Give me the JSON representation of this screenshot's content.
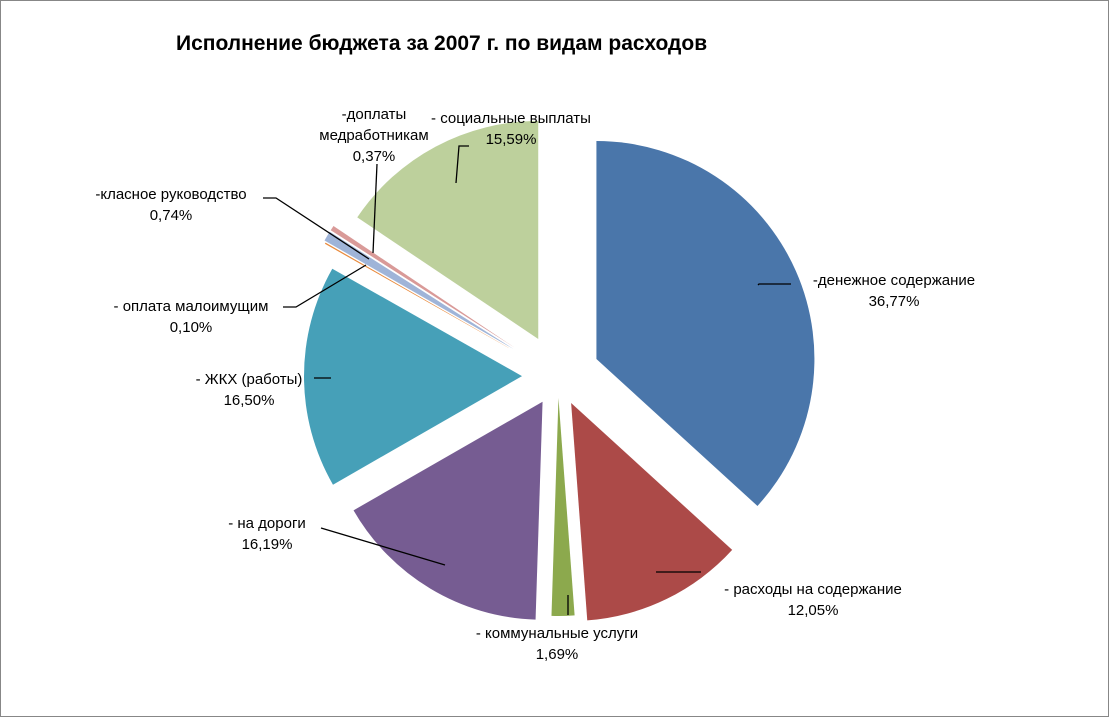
{
  "chart_data": {
    "type": "pie",
    "title": "Исполнение бюджета за 2007 г. по видам расходов",
    "exploded": true,
    "slices": [
      {
        "name": "-денежное содержание",
        "value_label": "36,77%",
        "value": 36.77,
        "color": "#4A76AA"
      },
      {
        "name": "- расходы на содержание",
        "value_label": "12,05%",
        "value": 12.05,
        "color": "#AC4A48"
      },
      {
        "name": "- коммунальные услуги",
        "value_label": "1,69%",
        "value": 1.69,
        "color": "#8CA94D"
      },
      {
        "name": "- на дороги",
        "value_label": "16,19%",
        "value": 16.19,
        "color": "#765C92"
      },
      {
        "name": "- ЖКХ (работы)",
        "value_label": "16,50%",
        "value": 16.5,
        "color": "#46A0B8"
      },
      {
        "name": "- оплата малоимущим",
        "value_label": "0,10%",
        "value": 0.1,
        "color": "#E98A3C"
      },
      {
        "name": "-класное руководство",
        "value_label": "0,74%",
        "value": 0.74,
        "color": "#9FB4D8"
      },
      {
        "name": "-доплаты медработникам",
        "value_label": "0,37%",
        "value": 0.37,
        "color": "#D99A98"
      },
      {
        "name": "- социальные выплаты",
        "value_label": "15,59%",
        "value": 15.59,
        "color": "#BDD09C"
      }
    ]
  }
}
